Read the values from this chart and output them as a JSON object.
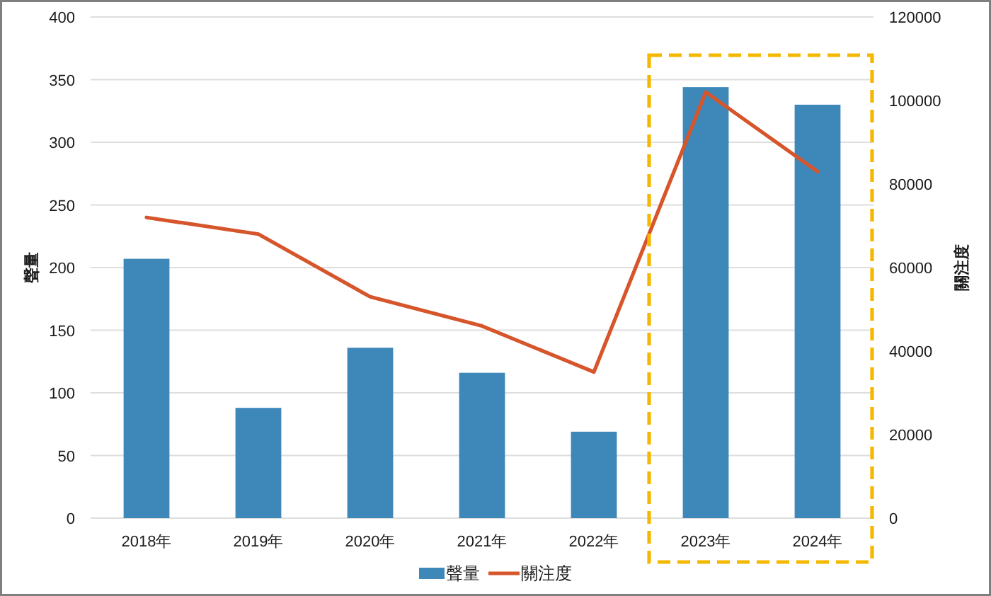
{
  "chart_data": {
    "type": "bar",
    "categories": [
      "2018年",
      "2019年",
      "2020年",
      "2021年",
      "2022年",
      "2023年",
      "2024年"
    ],
    "ylabel": "聲量",
    "y2label": "關注度",
    "ylim": [
      0,
      400
    ],
    "yticks": [
      0,
      50,
      100,
      150,
      200,
      250,
      300,
      350,
      400
    ],
    "y2lim": [
      0,
      120000
    ],
    "y2ticks": [
      0,
      20000,
      40000,
      60000,
      80000,
      100000,
      120000
    ],
    "grid": "y",
    "legend": "bottom",
    "series": [
      {
        "name": "聲量",
        "color": "#3d87b9",
        "values": [
          207,
          88,
          136,
          116,
          69,
          344,
          330
        ]
      },
      {
        "name": "關注度",
        "type": "line",
        "axis": "y2",
        "color": "#d6552b",
        "values": [
          72000,
          68000,
          53000,
          46000,
          35000,
          102000,
          83000
        ]
      }
    ]
  }
}
